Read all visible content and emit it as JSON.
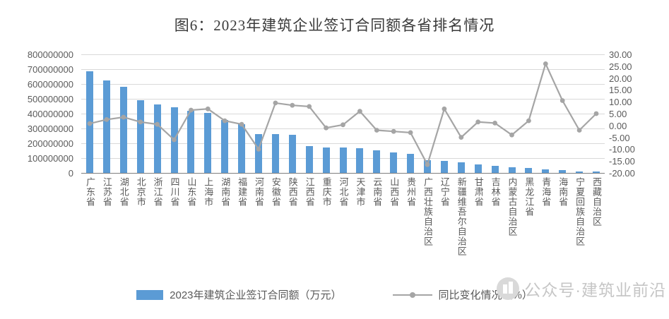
{
  "title": "图6：2023年建筑企业签订合同额各省排名情况",
  "legend": {
    "bars": "2023年建筑企业签订合同额（万元）",
    "line": "同比变化情况（%）"
  },
  "watermark": {
    "text": "公众号·建筑业前沿"
  },
  "colors": {
    "bar": "#5B9BD5",
    "line": "#A5A5A5",
    "grid": "#D9D9D9",
    "axis_line": "#7F7F7F",
    "axis_text": "#5A5A5A",
    "title_text": "#3A3A3A",
    "watermark": "#C6C6C6"
  },
  "chart_data": {
    "type": "bar",
    "title": "图6：2023年建筑企业签订合同额各省排名情况",
    "grid": true,
    "legend_position": "bottom",
    "categories": [
      "广东省",
      "江苏省",
      "湖北省",
      "北京市",
      "浙江省",
      "四川省",
      "山东省",
      "上海市",
      "湖南省",
      "福建省",
      "河南省",
      "安徽省",
      "陕西省",
      "江西省",
      "重庆市",
      "河北省",
      "天津市",
      "云南省",
      "山西省",
      "贵州省",
      "广西壮族自治区",
      "辽宁省",
      "新疆维吾尔自治区",
      "甘肃省",
      "吉林省",
      "内蒙古自治区",
      "黑龙江省",
      "青海省",
      "海南省",
      "宁夏回族自治区",
      "西藏自治区"
    ],
    "series": [
      {
        "name": "2023年建筑企业签订合同额（万元）",
        "chart": "bar",
        "axis": "left",
        "values": [
          685000000,
          622000000,
          583000000,
          490000000,
          463000000,
          445000000,
          420000000,
          403000000,
          357000000,
          330000000,
          263000000,
          261000000,
          257000000,
          183000000,
          174000000,
          171000000,
          168000000,
          152000000,
          139000000,
          130000000,
          87000000,
          82000000,
          70000000,
          57000000,
          48000000,
          39000000,
          33000000,
          25000000,
          19000000,
          11000000,
          8000000
        ]
      },
      {
        "name": "同比变化情况（%）",
        "chart": "line",
        "axis": "right",
        "values": [
          0.8,
          2.5,
          3.5,
          1.5,
          0.5,
          -6.0,
          6.5,
          7.0,
          2.0,
          0.5,
          -10.0,
          9.5,
          8.5,
          8.0,
          -1.0,
          0.3,
          6.0,
          -2.0,
          -2.5,
          -3.0,
          -16.5,
          7.0,
          -5.0,
          1.5,
          1.0,
          -4.0,
          2.0,
          26.0,
          10.5,
          -2.0,
          5.0
        ]
      }
    ],
    "y_left": {
      "min": 0,
      "max": 800000000,
      "ticks": [
        "800000000",
        "700000000",
        "600000000",
        "500000000",
        "400000000",
        "300000000",
        "200000000",
        "100000000",
        "0"
      ]
    },
    "y_right": {
      "min": -20,
      "max": 30,
      "ticks": [
        "30.00",
        "25.00",
        "20.00",
        "15.00",
        "10.00",
        "5.00",
        "0.00",
        "-5.00",
        "-10.00",
        "-15.00",
        "-20.00"
      ]
    }
  }
}
